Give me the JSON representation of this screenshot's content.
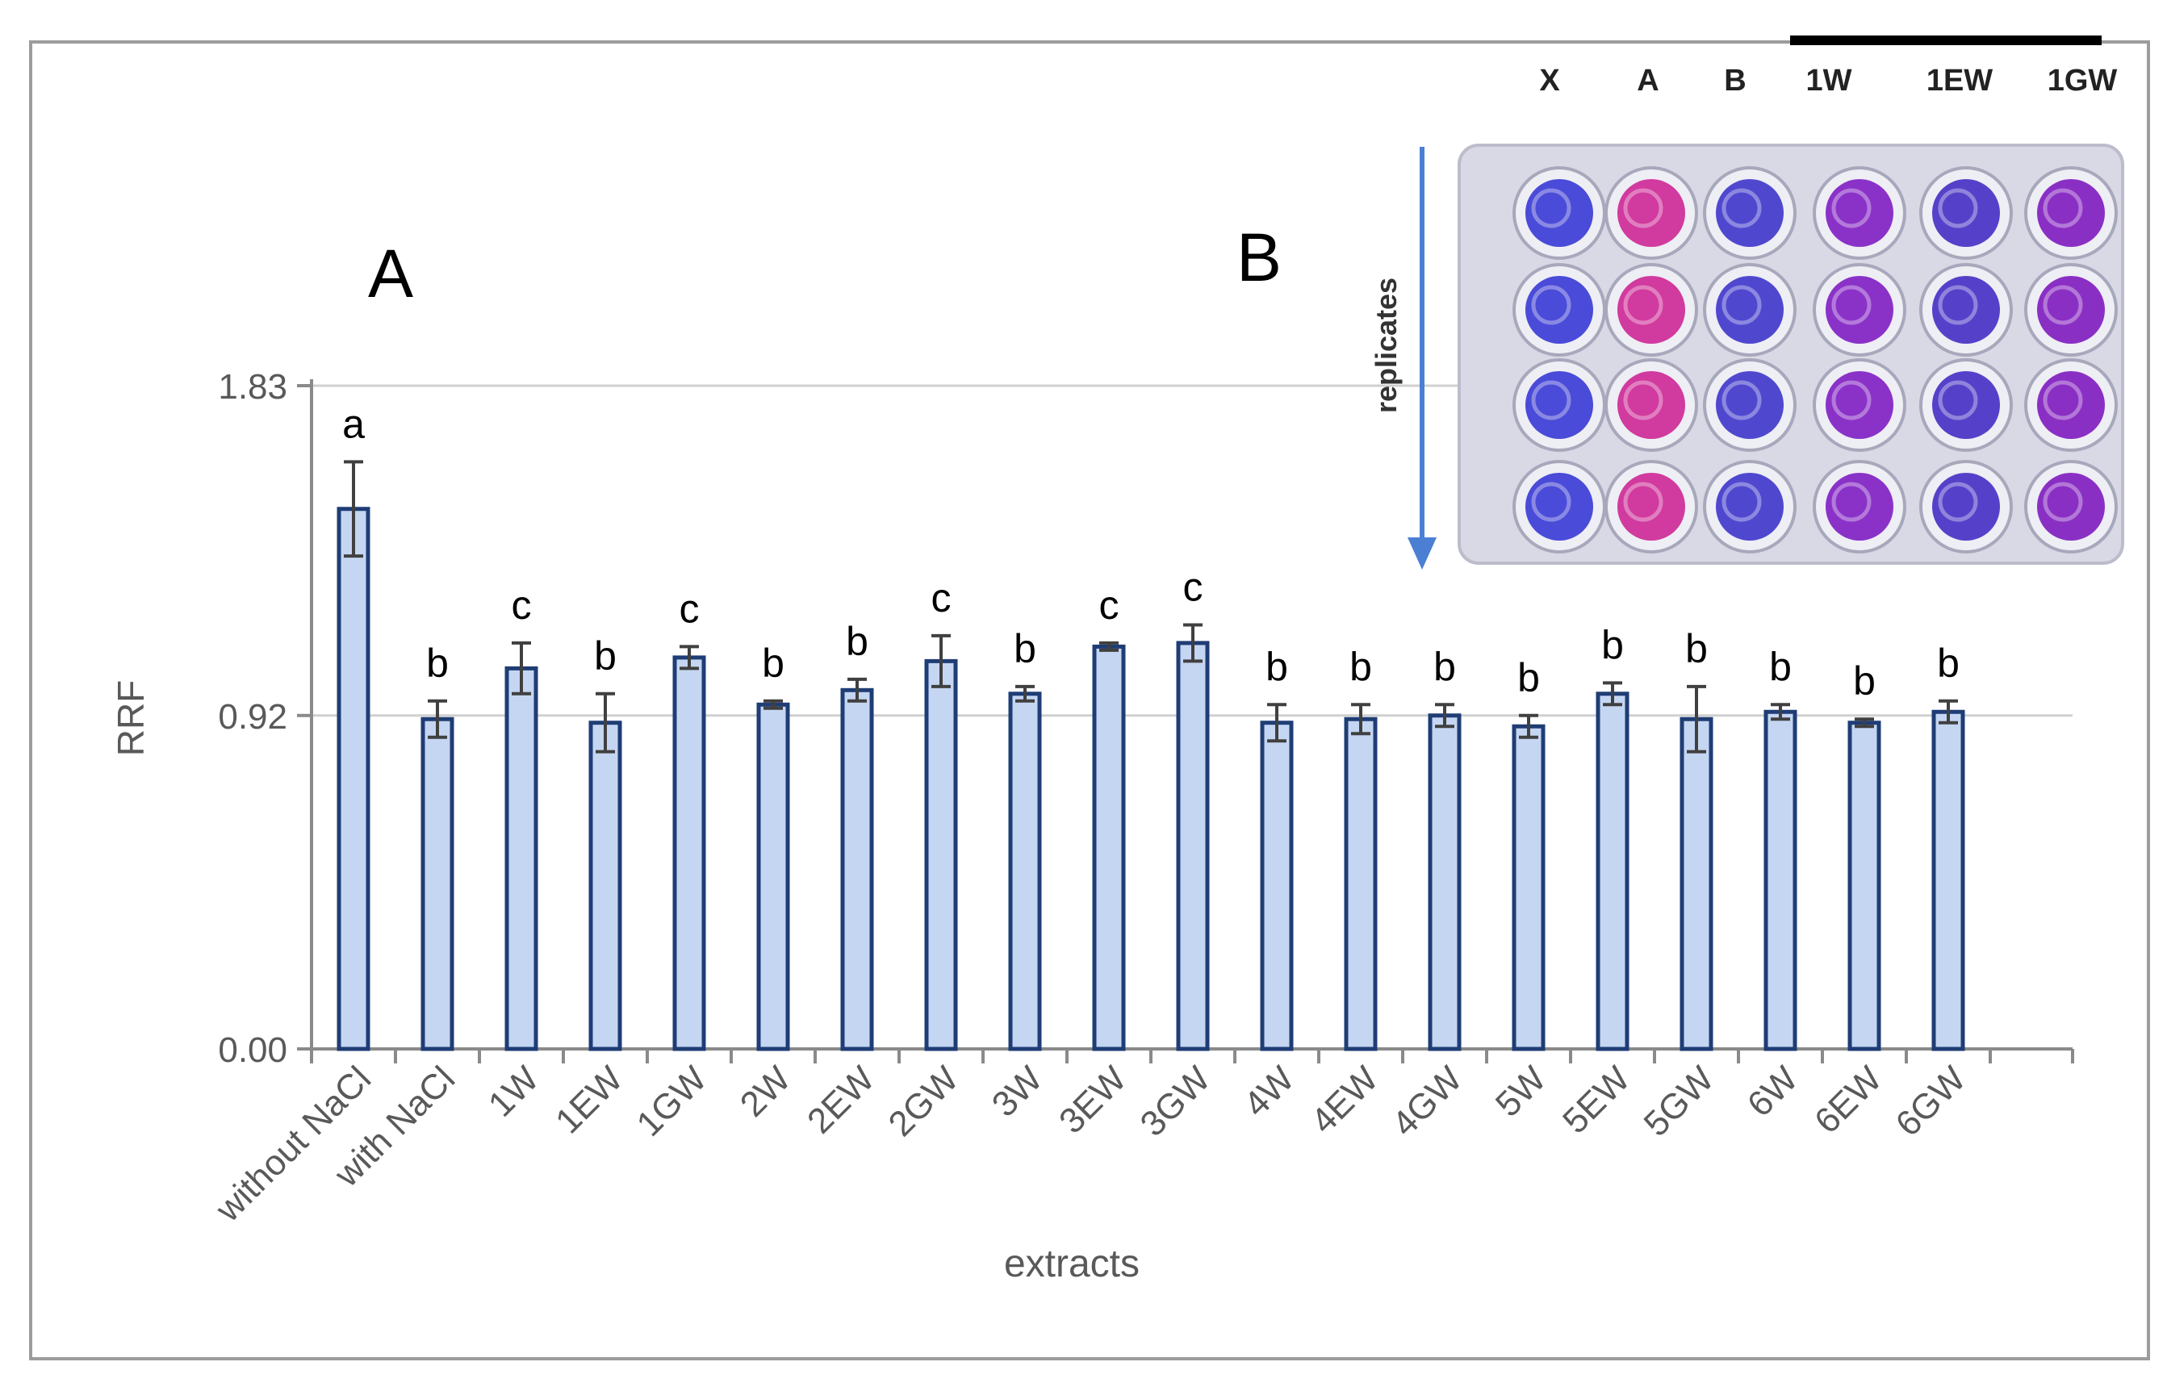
{
  "panels": {
    "a_label": "A",
    "b_label": "B"
  },
  "chart_data": {
    "type": "bar",
    "title": "",
    "xlabel": "extracts",
    "ylabel": "RRF",
    "ylim": [
      0,
      1.83
    ],
    "yticks": [
      "0.00",
      "0.92",
      "1.83"
    ],
    "ytick_values": [
      0,
      0.92,
      1.83
    ],
    "grid": true,
    "categories": [
      "without NaCl",
      "with NaCl",
      "1W",
      "1EW",
      "1GW",
      "2W",
      "2EW",
      "2GW",
      "3W",
      "3EW",
      "3GW",
      "4W",
      "4EW",
      "4GW",
      "5W",
      "5EW",
      "5GW",
      "6W",
      "6EW",
      "6GW"
    ],
    "values": [
      1.49,
      0.91,
      1.05,
      0.9,
      1.08,
      0.95,
      0.99,
      1.07,
      0.98,
      1.11,
      1.12,
      0.9,
      0.91,
      0.92,
      0.89,
      0.98,
      0.91,
      0.93,
      0.9,
      0.93
    ],
    "errors": [
      0.13,
      0.05,
      0.07,
      0.08,
      0.03,
      0.01,
      0.03,
      0.07,
      0.02,
      0.01,
      0.05,
      0.05,
      0.04,
      0.03,
      0.03,
      0.03,
      0.09,
      0.02,
      0.01,
      0.03
    ],
    "significance_letters": [
      "a",
      "b",
      "c",
      "b",
      "c",
      "b",
      "b",
      "c",
      "b",
      "c",
      "c",
      "b",
      "b",
      "b",
      "b",
      "b",
      "b",
      "b",
      "b",
      "b"
    ],
    "bar_fill": "#c5d6f2",
    "bar_stroke": "#1f3d75"
  },
  "plate_photo": {
    "column_labels": [
      "X",
      "A",
      "B",
      "1W",
      "1EW",
      "1GW"
    ],
    "axis_label": "replicates",
    "rows": 4,
    "well_colors": [
      "#4a4bd8",
      "#d13a9e",
      "#4f48cf",
      "#8a32c8",
      "#5541c9",
      "#8a2fc4"
    ],
    "arrow_color": "#4a7fd4"
  }
}
